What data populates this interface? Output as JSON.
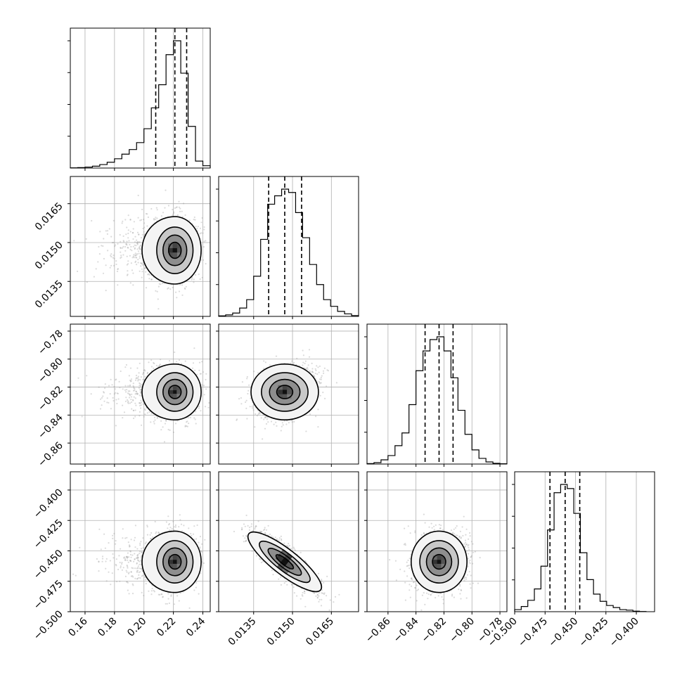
{
  "figure": {
    "background": "#ffffff",
    "ink": "#000000",
    "grid_color": "#b0b0b0",
    "scatter_color": "#999999"
  },
  "chart_data": {
    "type": "corner",
    "grid": true,
    "parameters": [
      {
        "range": [
          0.15,
          0.245
        ],
        "ticks": [
          0.16,
          0.18,
          0.2,
          0.22,
          0.24
        ],
        "tick_labels": [
          "0.16",
          "0.18",
          "0.20",
          "0.22",
          "0.24"
        ],
        "quantiles": [
          0.208,
          0.221,
          0.229
        ],
        "mean": 0.221,
        "sd": 0.0085
      },
      {
        "range": [
          0.01215,
          0.01755
        ],
        "ticks": [
          0.0135,
          0.015,
          0.0165
        ],
        "tick_labels": [
          "0.0135",
          "0.0150",
          "0.0165"
        ],
        "quantiles": [
          0.01408,
          0.0147,
          0.01535
        ],
        "mean": 0.0147,
        "sd": 0.00062
      },
      {
        "range": [
          -0.875,
          -0.775
        ],
        "ticks": [
          -0.86,
          -0.84,
          -0.82,
          -0.8,
          -0.78
        ],
        "tick_labels": [
          "−0.86",
          "−0.84",
          "−0.82",
          "−0.80",
          "−0.78"
        ],
        "quantiles": [
          -0.8335,
          -0.8235,
          -0.8135
        ],
        "mean": -0.8235,
        "sd": 0.0095
      },
      {
        "range": [
          -0.5,
          -0.385
        ],
        "ticks": [
          -0.5,
          -0.475,
          -0.45,
          -0.425,
          -0.4
        ],
        "tick_labels": [
          "−0.500",
          "−0.475",
          "−0.450",
          "−0.425",
          "−0.400"
        ],
        "quantiles": [
          -0.471,
          -0.4585,
          -0.4465
        ],
        "mean": -0.459,
        "sd": 0.012
      }
    ],
    "correlations": {
      "0-1": 0.0,
      "0-2": 0.0,
      "0-3": 0.0,
      "1-2": 0.35,
      "1-3": -0.85,
      "2-3": 0.1
    },
    "histograms": [
      {
        "bins": [
          0.15,
          0.155,
          0.16,
          0.165,
          0.17,
          0.175,
          0.18,
          0.185,
          0.19,
          0.195,
          0.2,
          0.205,
          0.21,
          0.215,
          0.22,
          0.225,
          0.23,
          0.235,
          0.24,
          0.245
        ],
        "counts": [
          0.1,
          0.2,
          0.4,
          0.8,
          1.5,
          2.5,
          4,
          6,
          8,
          11,
          17,
          26,
          36,
          49,
          55,
          41,
          18,
          3,
          1
        ]
      },
      {
        "bins": [
          0.01215,
          0.01242,
          0.01269,
          0.01296,
          0.01323,
          0.0135,
          0.01377,
          0.01404,
          0.01431,
          0.01458,
          0.01485,
          0.01512,
          0.01539,
          0.01566,
          0.01593,
          0.0162,
          0.01647,
          0.01674,
          0.01701,
          0.01728,
          0.01755
        ],
        "counts": [
          0.3,
          0.9,
          2,
          5,
          10,
          24,
          46,
          67,
          72,
          76,
          74,
          62,
          47,
          31,
          19,
          10,
          6,
          3,
          1.5,
          0.5
        ]
      },
      {
        "bins": [
          -0.875,
          -0.87,
          -0.865,
          -0.86,
          -0.855,
          -0.85,
          -0.845,
          -0.84,
          -0.835,
          -0.83,
          -0.825,
          -0.82,
          -0.815,
          -0.81,
          -0.805,
          -0.8,
          -0.795,
          -0.79,
          -0.785,
          -0.78,
          -0.775
        ],
        "counts": [
          0.3,
          1,
          3,
          6,
          13,
          22,
          42,
          66,
          80,
          88,
          90,
          80,
          61,
          38,
          21,
          10,
          4,
          1.5,
          0.5,
          0.2
        ]
      },
      {
        "bins": [
          -0.5,
          -0.4946,
          -0.4892,
          -0.4838,
          -0.4784,
          -0.473,
          -0.4676,
          -0.4622,
          -0.4568,
          -0.4514,
          -0.446,
          -0.4406,
          -0.4352,
          -0.4298,
          -0.4244,
          -0.419,
          -0.4136,
          -0.4082,
          -0.4028,
          -0.3974,
          -0.392
        ],
        "counts": [
          2,
          5,
          11,
          22,
          44,
          79,
          115,
          123,
          119,
          95,
          57,
          31,
          17,
          10,
          6,
          4,
          2,
          1.5,
          0.5,
          0.2
        ]
      }
    ]
  }
}
